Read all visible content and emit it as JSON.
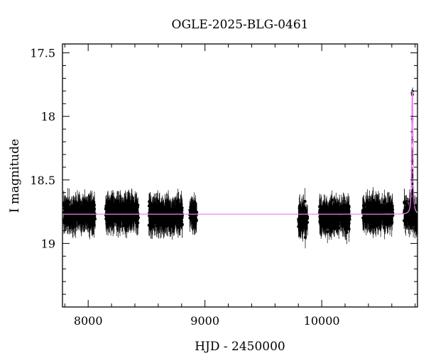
{
  "chart_data": {
    "type": "scatter",
    "title": "OGLE-2025-BLG-0461",
    "xlabel": "HJD - 2450000",
    "ylabel": "I magnitude",
    "xlim": [
      7780,
      10820
    ],
    "ylim": [
      19.5,
      17.43
    ],
    "y_inverted": true,
    "x_ticks": [
      8000,
      9000,
      10000
    ],
    "y_ticks": [
      17.5,
      18,
      18.5,
      19
    ],
    "x_tick_labels": [
      "8000",
      "9000",
      "10000"
    ],
    "y_tick_labels": [
      "17.5",
      "18",
      "18.5",
      "19"
    ],
    "baseline_mag": 18.77,
    "peak": {
      "hjd": 10776,
      "mag": 17.8
    },
    "model_color": "#ee82ee",
    "point_color": "#000000",
    "seasons": [
      {
        "start": 7790,
        "end": 8060,
        "mean_mag": 18.77,
        "scatter_mag": 0.1
      },
      {
        "start": 8150,
        "end": 8430,
        "mean_mag": 18.76,
        "scatter_mag": 0.1
      },
      {
        "start": 8520,
        "end": 8810,
        "mean_mag": 18.78,
        "scatter_mag": 0.11
      },
      {
        "start": 8870,
        "end": 8930,
        "mean_mag": 18.78,
        "scatter_mag": 0.08
      },
      {
        "start": 9800,
        "end": 9880,
        "mean_mag": 18.8,
        "scatter_mag": 0.12
      },
      {
        "start": 9980,
        "end": 10240,
        "mean_mag": 18.79,
        "scatter_mag": 0.1
      },
      {
        "start": 10350,
        "end": 10610,
        "mean_mag": 18.77,
        "scatter_mag": 0.1
      },
      {
        "start": 10705,
        "end": 10820,
        "mean_mag": 18.77,
        "scatter_mag": 0.1
      }
    ],
    "grid": false,
    "legend": false
  }
}
